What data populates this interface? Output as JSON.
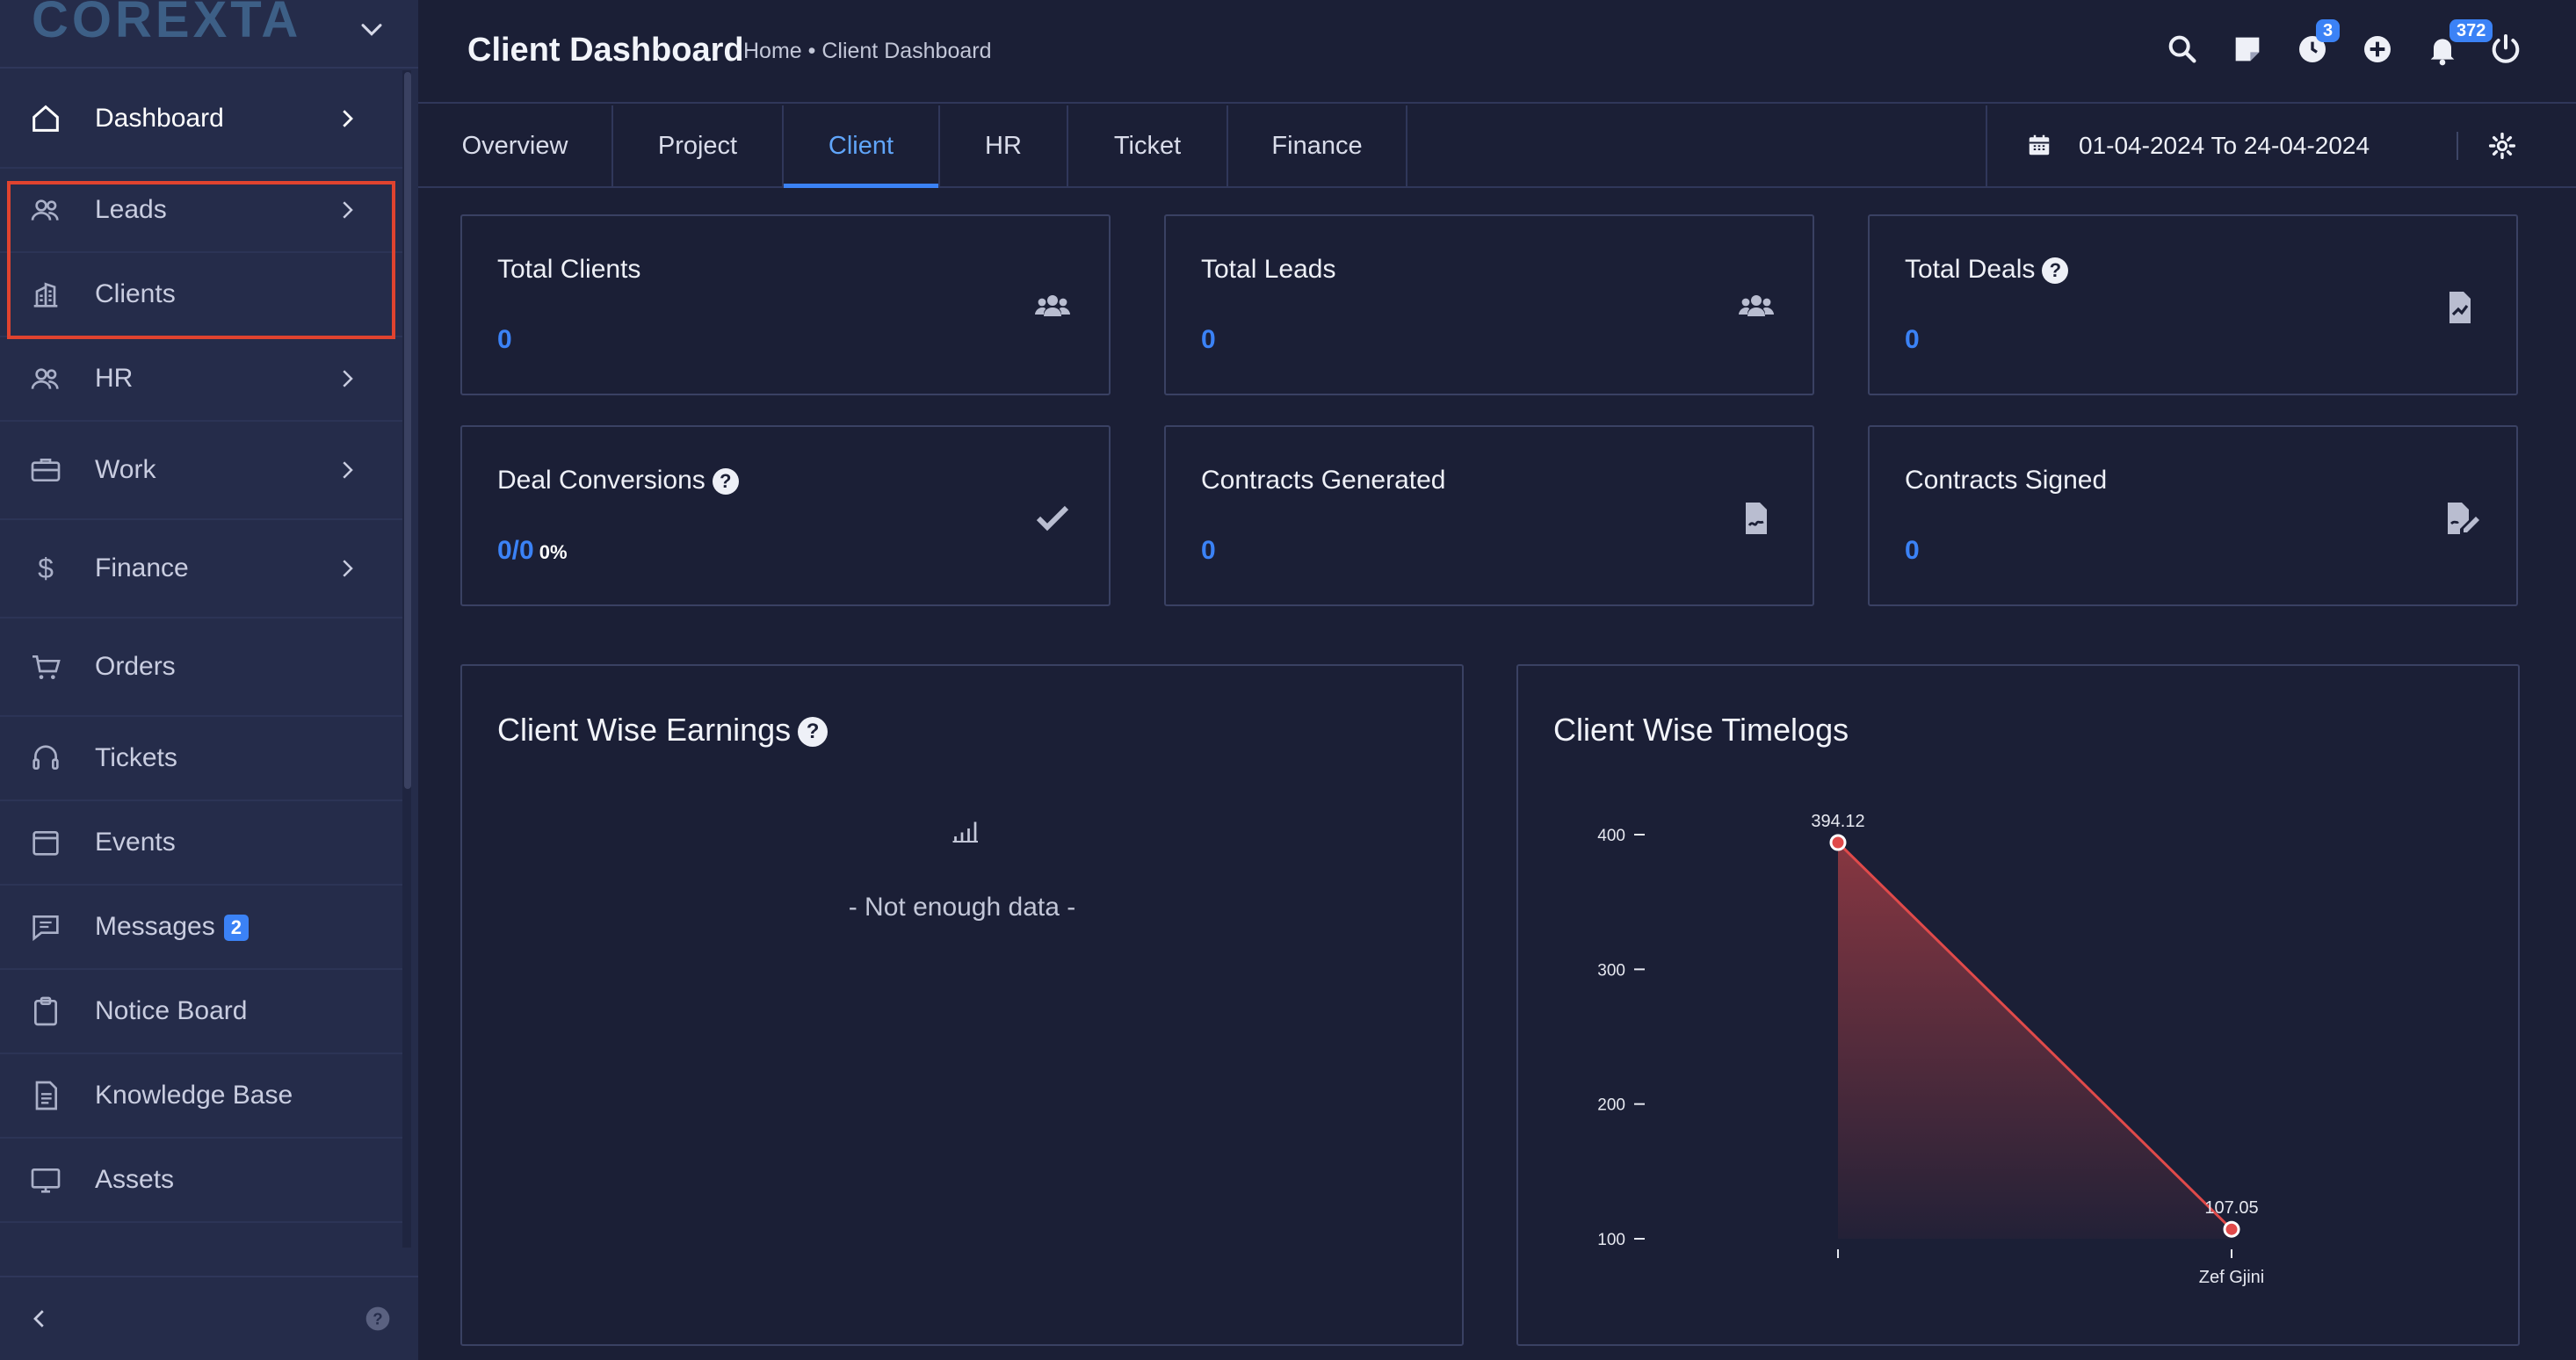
{
  "brand": {
    "logo_text": "COREXTA"
  },
  "sidebar": {
    "items": [
      {
        "label": "Dashboard",
        "icon": "home-icon",
        "has_arrow": true,
        "active": true
      },
      {
        "label": "Leads",
        "icon": "users-icon",
        "has_arrow": true
      },
      {
        "label": "Clients",
        "icon": "building-icon",
        "has_arrow": false
      },
      {
        "label": "HR",
        "icon": "people-icon",
        "has_arrow": true
      },
      {
        "label": "Work",
        "icon": "briefcase-icon",
        "has_arrow": true
      },
      {
        "label": "Finance",
        "icon": "dollar-icon",
        "has_arrow": true
      },
      {
        "label": "Orders",
        "icon": "cart-icon",
        "has_arrow": false
      },
      {
        "label": "Tickets",
        "icon": "headset-icon",
        "has_arrow": false
      },
      {
        "label": "Events",
        "icon": "calendar-icon",
        "has_arrow": false
      },
      {
        "label": "Messages",
        "icon": "message-icon",
        "has_arrow": false,
        "badge": "2"
      },
      {
        "label": "Notice Board",
        "icon": "clipboard-icon",
        "has_arrow": false
      },
      {
        "label": "Knowledge Base",
        "icon": "document-icon",
        "has_arrow": false
      },
      {
        "label": "Assets",
        "icon": "monitor-icon",
        "has_arrow": false
      }
    ]
  },
  "header": {
    "title": "Client Dashboard",
    "breadcrumb": "Home • Client Dashboard",
    "timer_badge": "3",
    "notification_badge": "372"
  },
  "tabs": [
    {
      "label": "Overview"
    },
    {
      "label": "Project"
    },
    {
      "label": "Client",
      "active": true
    },
    {
      "label": "HR"
    },
    {
      "label": "Ticket"
    },
    {
      "label": "Finance"
    }
  ],
  "date_range": "01-04-2024 To 24-04-2024",
  "cards": {
    "total_clients": {
      "title": "Total Clients",
      "value": "0"
    },
    "total_leads": {
      "title": "Total Leads",
      "value": "0"
    },
    "total_deals": {
      "title": "Total Deals",
      "value": "0"
    },
    "deal_conversions": {
      "title": "Deal Conversions",
      "value": "0/0",
      "percent": "0%"
    },
    "contracts_generated": {
      "title": "Contracts Generated",
      "value": "0"
    },
    "contracts_signed": {
      "title": "Contracts Signed",
      "value": "0"
    }
  },
  "earnings_panel": {
    "title": "Client Wise Earnings",
    "empty_text": "- Not enough data -"
  },
  "timelogs_panel": {
    "title": "Client Wise Timelogs"
  },
  "colors": {
    "accent": "#3b82f6",
    "chart_line": "#e04a4a",
    "highlight": "#e0432f"
  },
  "chart_data": {
    "type": "area",
    "title": "Client Wise Timelogs",
    "categories": [
      "",
      "Zef Gjini"
    ],
    "series": [
      {
        "values": [
          394.12,
          107.05
        ]
      }
    ],
    "data_labels": [
      "394.12",
      "107.05"
    ],
    "y_ticks": [
      "400",
      "300",
      "200",
      "100"
    ],
    "ylim": [
      100,
      400
    ],
    "grid": false
  }
}
